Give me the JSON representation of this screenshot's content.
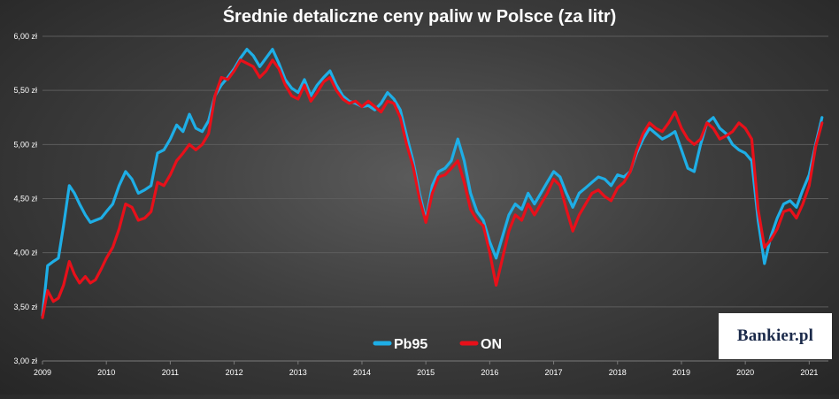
{
  "chart_data": {
    "type": "line",
    "title": "Średnie detaliczne ceny paliw w Polsce (za litr)",
    "ylim": [
      3.0,
      6.0
    ],
    "y_ticks": [
      3.0,
      3.5,
      4.0,
      4.5,
      5.0,
      5.5,
      6.0
    ],
    "y_tick_labels": [
      "3,00 zł",
      "3,50 zł",
      "4,00 zł",
      "4,50 zł",
      "5,00 zł",
      "5,50 zł",
      "6,00 zł"
    ],
    "xlim": [
      2009.0,
      2021.3
    ],
    "x_ticks": [
      2009,
      2010,
      2011,
      2012,
      2013,
      2014,
      2015,
      2016,
      2017,
      2018,
      2019,
      2020,
      2021
    ],
    "x_tick_labels": [
      "2009",
      "2010",
      "2011",
      "2012",
      "2013",
      "2014",
      "2015",
      "2016",
      "2017",
      "2018",
      "2019",
      "2020",
      "2021"
    ],
    "grid": true,
    "legend": "bottom-center",
    "series": [
      {
        "name": "Pb95",
        "color": "#1eaee6",
        "x": [
          2009.0,
          2009.08,
          2009.17,
          2009.25,
          2009.33,
          2009.42,
          2009.5,
          2009.58,
          2009.67,
          2009.75,
          2009.83,
          2009.92,
          2010.0,
          2010.1,
          2010.2,
          2010.3,
          2010.4,
          2010.5,
          2010.6,
          2010.7,
          2010.8,
          2010.9,
          2011.0,
          2011.1,
          2011.2,
          2011.3,
          2011.4,
          2011.5,
          2011.6,
          2011.7,
          2011.8,
          2011.9,
          2012.0,
          2012.1,
          2012.2,
          2012.3,
          2012.4,
          2012.5,
          2012.6,
          2012.7,
          2012.8,
          2012.9,
          2013.0,
          2013.1,
          2013.2,
          2013.3,
          2013.4,
          2013.5,
          2013.6,
          2013.7,
          2013.8,
          2013.9,
          2014.0,
          2014.1,
          2014.2,
          2014.3,
          2014.4,
          2014.5,
          2014.6,
          2014.7,
          2014.8,
          2014.9,
          2015.0,
          2015.1,
          2015.2,
          2015.3,
          2015.4,
          2015.5,
          2015.6,
          2015.7,
          2015.8,
          2015.9,
          2016.0,
          2016.1,
          2016.2,
          2016.3,
          2016.4,
          2016.5,
          2016.6,
          2016.7,
          2016.8,
          2016.9,
          2017.0,
          2017.1,
          2017.2,
          2017.3,
          2017.4,
          2017.5,
          2017.6,
          2017.7,
          2017.8,
          2017.9,
          2018.0,
          2018.1,
          2018.2,
          2018.3,
          2018.4,
          2018.5,
          2018.6,
          2018.7,
          2018.8,
          2018.9,
          2019.0,
          2019.1,
          2019.2,
          2019.3,
          2019.4,
          2019.5,
          2019.6,
          2019.7,
          2019.8,
          2019.9,
          2020.0,
          2020.1,
          2020.2,
          2020.3,
          2020.4,
          2020.5,
          2020.6,
          2020.7,
          2020.8,
          2020.9,
          2021.0,
          2021.1,
          2021.2
        ],
        "y": [
          3.42,
          3.88,
          3.92,
          3.95,
          4.25,
          4.62,
          4.55,
          4.45,
          4.35,
          4.28,
          4.3,
          4.32,
          4.38,
          4.45,
          4.62,
          4.75,
          4.68,
          4.55,
          4.58,
          4.62,
          4.92,
          4.95,
          5.05,
          5.18,
          5.12,
          5.28,
          5.15,
          5.12,
          5.22,
          5.45,
          5.55,
          5.62,
          5.7,
          5.8,
          5.88,
          5.82,
          5.72,
          5.8,
          5.88,
          5.75,
          5.6,
          5.52,
          5.48,
          5.6,
          5.45,
          5.55,
          5.62,
          5.68,
          5.55,
          5.45,
          5.4,
          5.38,
          5.35,
          5.36,
          5.32,
          5.38,
          5.48,
          5.42,
          5.32,
          5.08,
          4.85,
          4.55,
          4.3,
          4.62,
          4.75,
          4.78,
          4.85,
          5.05,
          4.85,
          4.55,
          4.38,
          4.3,
          4.1,
          3.95,
          4.15,
          4.35,
          4.45,
          4.4,
          4.55,
          4.45,
          4.55,
          4.65,
          4.75,
          4.7,
          4.55,
          4.42,
          4.55,
          4.6,
          4.65,
          4.7,
          4.68,
          4.62,
          4.72,
          4.7,
          4.75,
          4.92,
          5.05,
          5.15,
          5.1,
          5.05,
          5.08,
          5.12,
          4.95,
          4.78,
          4.75,
          5.0,
          5.2,
          5.25,
          5.15,
          5.1,
          5.0,
          4.95,
          4.92,
          4.85,
          4.3,
          3.9,
          4.15,
          4.32,
          4.45,
          4.48,
          4.42,
          4.58,
          4.72,
          5.0,
          5.25
        ]
      },
      {
        "name": "ON",
        "color": "#e8101a",
        "x": [
          2009.0,
          2009.08,
          2009.17,
          2009.25,
          2009.33,
          2009.42,
          2009.5,
          2009.58,
          2009.67,
          2009.75,
          2009.83,
          2009.92,
          2010.0,
          2010.1,
          2010.2,
          2010.3,
          2010.4,
          2010.5,
          2010.6,
          2010.7,
          2010.8,
          2010.9,
          2011.0,
          2011.1,
          2011.2,
          2011.3,
          2011.4,
          2011.5,
          2011.6,
          2011.7,
          2011.8,
          2011.9,
          2012.0,
          2012.1,
          2012.2,
          2012.3,
          2012.4,
          2012.5,
          2012.6,
          2012.7,
          2012.8,
          2012.9,
          2013.0,
          2013.1,
          2013.2,
          2013.3,
          2013.4,
          2013.5,
          2013.6,
          2013.7,
          2013.8,
          2013.9,
          2014.0,
          2014.1,
          2014.2,
          2014.3,
          2014.4,
          2014.5,
          2014.6,
          2014.7,
          2014.8,
          2014.9,
          2015.0,
          2015.1,
          2015.2,
          2015.3,
          2015.4,
          2015.5,
          2015.6,
          2015.7,
          2015.8,
          2015.9,
          2016.0,
          2016.1,
          2016.2,
          2016.3,
          2016.4,
          2016.5,
          2016.6,
          2016.7,
          2016.8,
          2016.9,
          2017.0,
          2017.1,
          2017.2,
          2017.3,
          2017.4,
          2017.5,
          2017.6,
          2017.7,
          2017.8,
          2017.9,
          2018.0,
          2018.1,
          2018.2,
          2018.3,
          2018.4,
          2018.5,
          2018.6,
          2018.7,
          2018.8,
          2018.9,
          2019.0,
          2019.1,
          2019.2,
          2019.3,
          2019.4,
          2019.5,
          2019.6,
          2019.7,
          2019.8,
          2019.9,
          2020.0,
          2020.1,
          2020.2,
          2020.3,
          2020.4,
          2020.5,
          2020.6,
          2020.7,
          2020.8,
          2020.9,
          2021.0,
          2021.1,
          2021.2
        ],
        "y": [
          3.4,
          3.65,
          3.55,
          3.58,
          3.7,
          3.92,
          3.8,
          3.72,
          3.78,
          3.72,
          3.75,
          3.85,
          3.95,
          4.05,
          4.22,
          4.45,
          4.42,
          4.3,
          4.32,
          4.38,
          4.65,
          4.62,
          4.72,
          4.85,
          4.92,
          5.0,
          4.95,
          5.0,
          5.1,
          5.45,
          5.62,
          5.6,
          5.68,
          5.78,
          5.75,
          5.72,
          5.62,
          5.68,
          5.78,
          5.7,
          5.55,
          5.45,
          5.42,
          5.55,
          5.4,
          5.48,
          5.58,
          5.62,
          5.5,
          5.42,
          5.38,
          5.4,
          5.35,
          5.4,
          5.35,
          5.3,
          5.4,
          5.38,
          5.25,
          5.0,
          4.8,
          4.5,
          4.28,
          4.55,
          4.7,
          4.72,
          4.78,
          4.85,
          4.65,
          4.4,
          4.3,
          4.25,
          4.0,
          3.7,
          3.95,
          4.2,
          4.35,
          4.3,
          4.45,
          4.35,
          4.45,
          4.55,
          4.68,
          4.62,
          4.4,
          4.2,
          4.35,
          4.45,
          4.55,
          4.58,
          4.52,
          4.48,
          4.6,
          4.65,
          4.75,
          4.95,
          5.1,
          5.2,
          5.15,
          5.12,
          5.2,
          5.3,
          5.15,
          5.05,
          5.0,
          5.05,
          5.2,
          5.15,
          5.05,
          5.08,
          5.12,
          5.2,
          5.15,
          5.05,
          4.4,
          4.05,
          4.12,
          4.22,
          4.38,
          4.4,
          4.32,
          4.45,
          4.62,
          4.98,
          5.2
        ]
      }
    ]
  },
  "watermark": "Bankier.pl",
  "colors": {
    "grid": "#5c5c5c",
    "text": "#ffffff"
  }
}
